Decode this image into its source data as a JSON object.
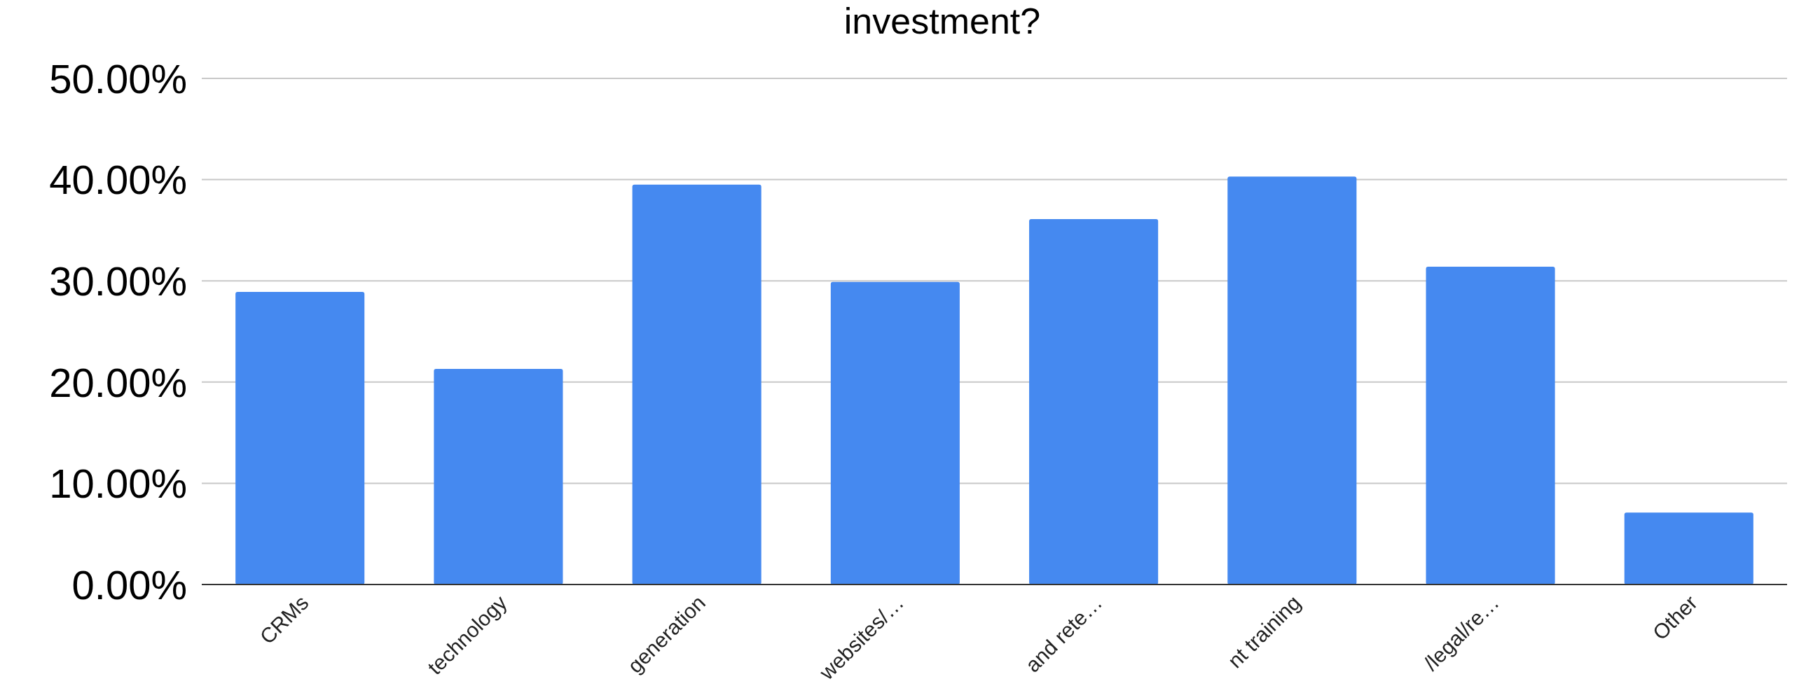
{
  "chart_data": {
    "type": "bar",
    "title": "investment?",
    "categories": [
      "CRMs",
      "technology",
      "generation",
      "websites/…",
      "and rete…",
      "nt training",
      "/legal/re…",
      "Other"
    ],
    "values": [
      28.9,
      21.3,
      39.5,
      29.9,
      36.1,
      40.3,
      31.4,
      7.1
    ],
    "color": "#4589f0",
    "ylim": [
      0,
      50
    ],
    "yticks": [
      {
        "value": 0,
        "label": "0.00%"
      },
      {
        "value": 10,
        "label": "10.00%"
      },
      {
        "value": 20,
        "label": "20.00%"
      },
      {
        "value": 30,
        "label": "30.00%"
      },
      {
        "value": 40,
        "label": "40.00%"
      },
      {
        "value": 50,
        "label": "50.00%"
      }
    ],
    "grid": "y"
  }
}
